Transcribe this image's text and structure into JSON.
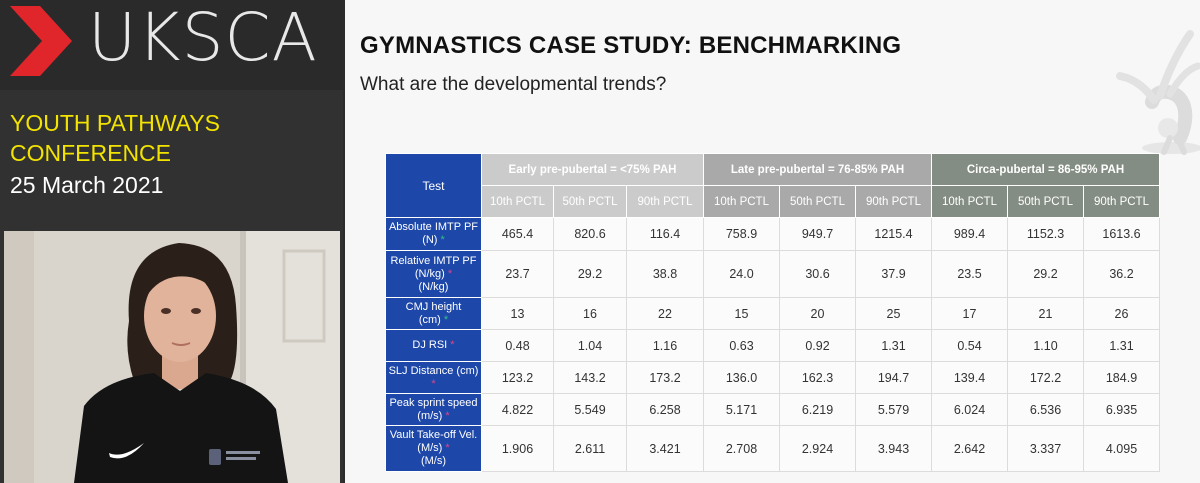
{
  "sidebar": {
    "logo_text": "UKSCA",
    "conference_line1": "YOUTH PATHWAYS",
    "conference_line2": "CONFERENCE",
    "date": "25 March 2021"
  },
  "slide": {
    "title": "GYMNASTICS CASE STUDY: BENCHMARKING",
    "subtitle": "What are the developmental trends?",
    "table": {
      "test_header": "Test",
      "groups": [
        "Early pre-pubertal = <75% PAH",
        "Late pre-pubertal = 76-85% PAH",
        "Circa-pubertal = 86-95% PAH"
      ],
      "percentiles": [
        "10th PCTL",
        "50th PCTL",
        "90th PCTL",
        "10th PCTL",
        "50th PCTL",
        "90th PCTL",
        "10th PCTL",
        "50th PCTL",
        "90th PCTL"
      ],
      "rows": [
        {
          "label1": "Absolute IMTP PF",
          "label2": "(N)",
          "star": "green",
          "values": [
            "465.4",
            "820.6",
            "116.4",
            "758.9",
            "949.7",
            "1215.4",
            "989.4",
            "1152.3",
            "1613.6"
          ]
        },
        {
          "label1": "Relative IMTP PF",
          "label2": "(N/kg)",
          "label3": "(N/kg)",
          "star": "pink",
          "values": [
            "23.7",
            "29.2",
            "38.8",
            "24.0",
            "30.6",
            "37.9",
            "23.5",
            "29.2",
            "36.2"
          ]
        },
        {
          "label1": "CMJ height",
          "label2": "(cm)",
          "star": "green",
          "values": [
            "13",
            "16",
            "22",
            "15",
            "20",
            "25",
            "17",
            "21",
            "26"
          ]
        },
        {
          "label1": "DJ RSI",
          "star": "pink",
          "values": [
            "0.48",
            "1.04",
            "1.16",
            "0.63",
            "0.92",
            "1.31",
            "0.54",
            "1.10",
            "1.31"
          ]
        },
        {
          "label1": "SLJ Distance (cm)",
          "star": "pink",
          "values": [
            "123.2",
            "143.2",
            "173.2",
            "136.0",
            "162.3",
            "194.7",
            "139.4",
            "172.2",
            "184.9"
          ]
        },
        {
          "label1": "Peak sprint speed",
          "label2": "(m/s)",
          "star": "pink",
          "values": [
            "4.822",
            "5.549",
            "6.258",
            "5.171",
            "6.219",
            "5.579",
            "6.024",
            "6.536",
            "6.935"
          ]
        },
        {
          "label1": "Vault Take-off Vel.",
          "label2": "(M/s)",
          "label3": "(M/s)",
          "star": "pink",
          "values": [
            "1.906",
            "2.611",
            "3.421",
            "2.708",
            "2.924",
            "3.943",
            "2.642",
            "3.337",
            "4.095"
          ]
        }
      ]
    }
  },
  "colors": {
    "accent_red": "#e0262b",
    "conference_yellow": "#f2e300",
    "table_blue": "#1d47a8",
    "star_green": "#35c08a",
    "star_pink": "#e0458a"
  },
  "icons": [
    "uksca-chevron-logo",
    "gymnast-figure-graphic",
    "webcam-presenter-video"
  ]
}
